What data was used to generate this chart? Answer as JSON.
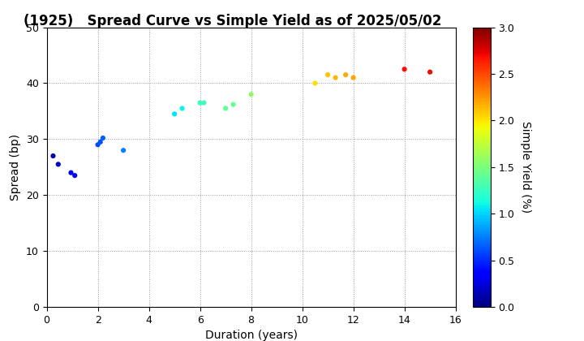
{
  "title": "(1925)   Spread Curve vs Simple Yield as of 2025/05/02",
  "xlabel": "Duration (years)",
  "ylabel": "Spread (bp)",
  "colorbar_label": "Simple Yield (%)",
  "xlim": [
    0,
    16
  ],
  "ylim": [
    0,
    50
  ],
  "xticks": [
    0,
    2,
    4,
    6,
    8,
    10,
    12,
    14,
    16
  ],
  "yticks": [
    0,
    10,
    20,
    30,
    40,
    50
  ],
  "colormap": "jet",
  "clim": [
    0.0,
    3.0
  ],
  "cticks": [
    0.0,
    0.5,
    1.0,
    1.5,
    2.0,
    2.5,
    3.0
  ],
  "points": [
    {
      "duration": 0.25,
      "spread": 27.0,
      "yield": 0.12
    },
    {
      "duration": 0.45,
      "spread": 25.5,
      "yield": 0.18
    },
    {
      "duration": 0.95,
      "spread": 24.0,
      "yield": 0.32
    },
    {
      "duration": 1.1,
      "spread": 23.5,
      "yield": 0.34
    },
    {
      "duration": 2.0,
      "spread": 29.0,
      "yield": 0.6
    },
    {
      "duration": 2.1,
      "spread": 29.5,
      "yield": 0.62
    },
    {
      "duration": 2.2,
      "spread": 30.2,
      "yield": 0.65
    },
    {
      "duration": 3.0,
      "spread": 28.0,
      "yield": 0.75
    },
    {
      "duration": 5.0,
      "spread": 34.5,
      "yield": 1.05
    },
    {
      "duration": 5.3,
      "spread": 35.5,
      "yield": 1.1
    },
    {
      "duration": 6.0,
      "spread": 36.5,
      "yield": 1.25
    },
    {
      "duration": 6.15,
      "spread": 36.5,
      "yield": 1.27
    },
    {
      "duration": 7.0,
      "spread": 35.5,
      "yield": 1.4
    },
    {
      "duration": 7.3,
      "spread": 36.2,
      "yield": 1.42
    },
    {
      "duration": 8.0,
      "spread": 38.0,
      "yield": 1.57
    },
    {
      "duration": 10.5,
      "spread": 40.0,
      "yield": 2.02
    },
    {
      "duration": 11.0,
      "spread": 41.5,
      "yield": 2.12
    },
    {
      "duration": 11.3,
      "spread": 41.0,
      "yield": 2.15
    },
    {
      "duration": 11.7,
      "spread": 41.5,
      "yield": 2.18
    },
    {
      "duration": 12.0,
      "spread": 41.0,
      "yield": 2.2
    },
    {
      "duration": 14.0,
      "spread": 42.5,
      "yield": 2.68
    },
    {
      "duration": 15.0,
      "spread": 42.0,
      "yield": 2.7
    }
  ],
  "marker_size": 20,
  "background_color": "#ffffff",
  "grid_color": "#999999",
  "title_fontsize": 12,
  "axis_label_fontsize": 10,
  "tick_fontsize": 9,
  "colorbar_tick_fontsize": 9,
  "colorbar_label_fontsize": 10
}
